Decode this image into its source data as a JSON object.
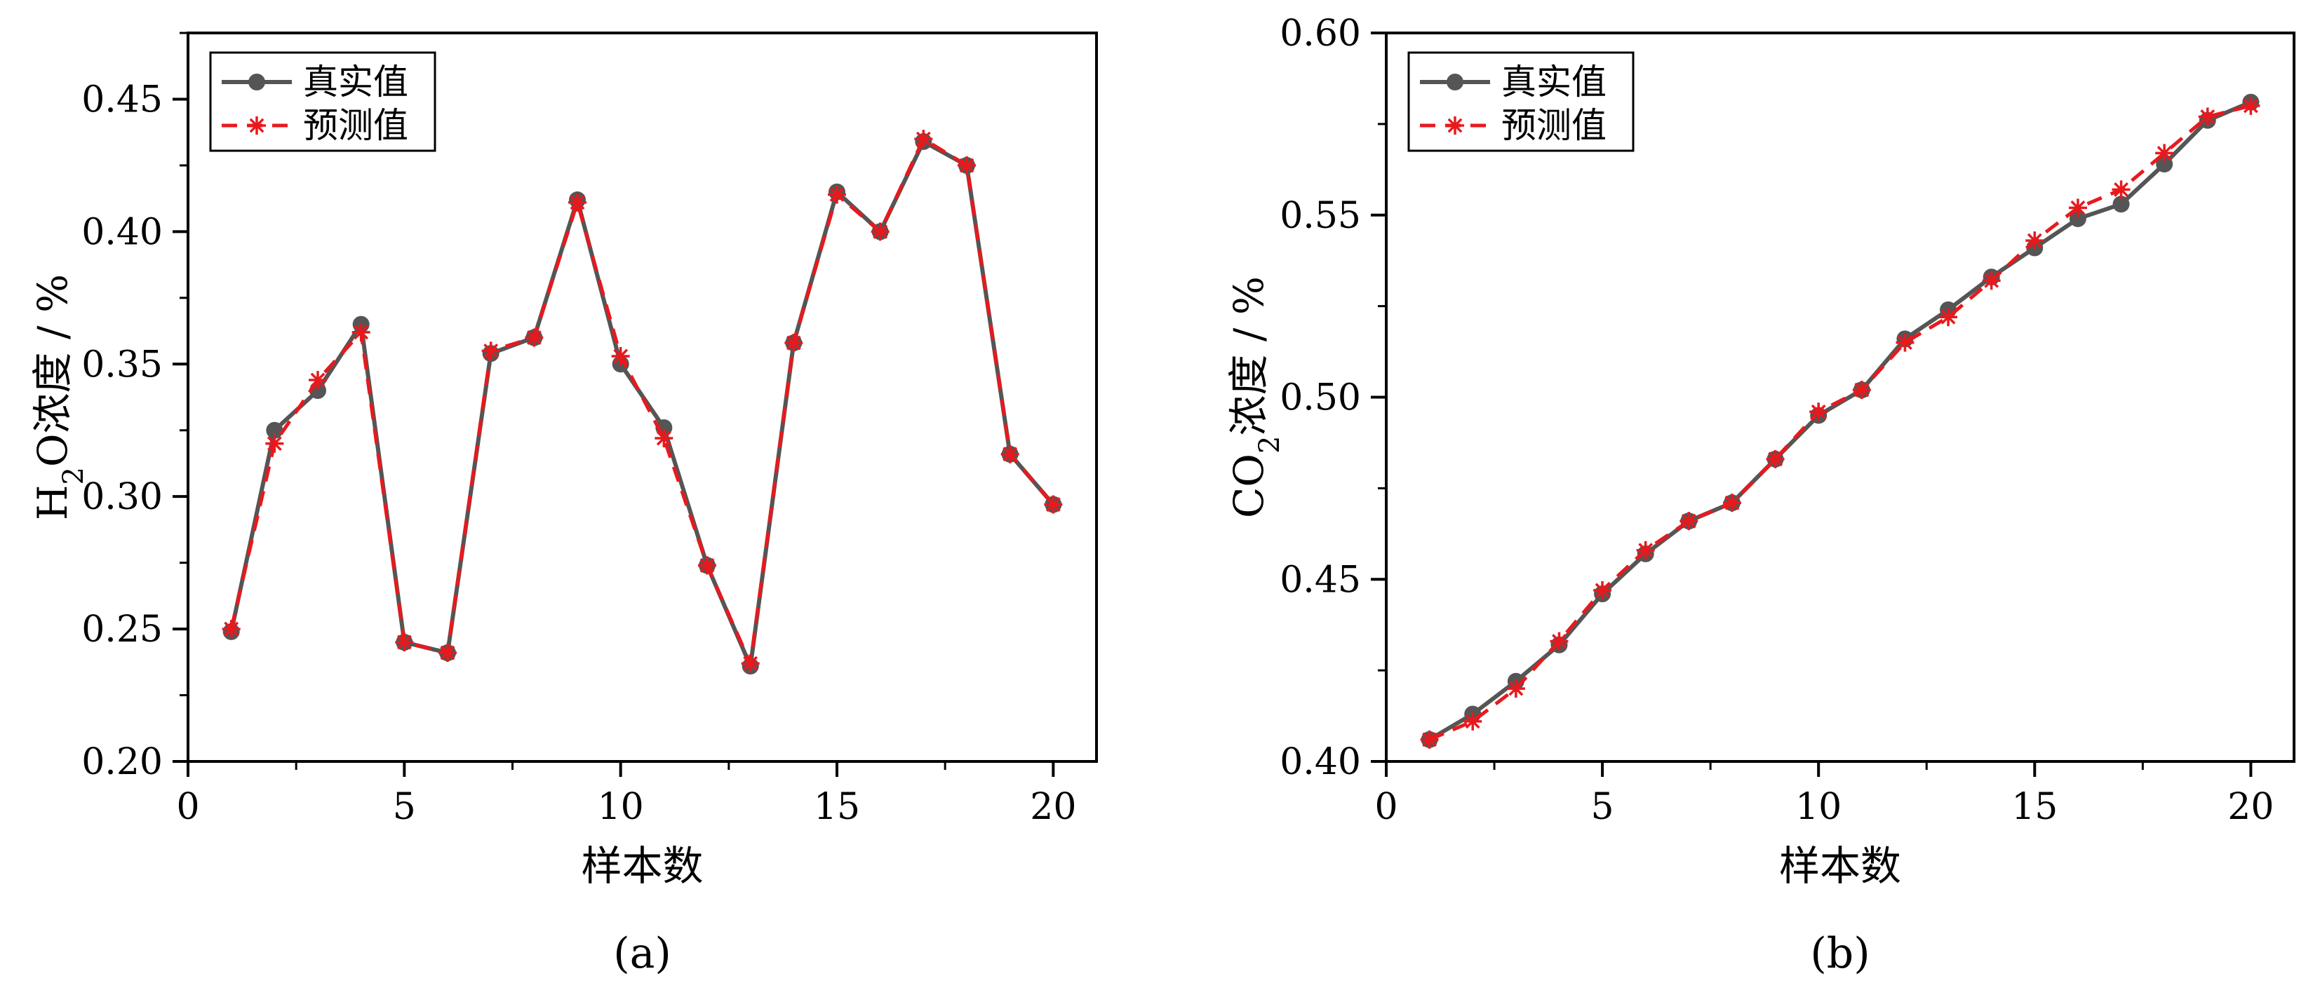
{
  "chart_data": [
    {
      "type": "line",
      "caption": "(a)",
      "xlabel": "样本数",
      "ylabel_main": "H",
      "ylabel_sub": "2",
      "ylabel_rest": "O浓度 / %",
      "xlim": [
        0,
        21
      ],
      "ylim": [
        0.2,
        0.475
      ],
      "xticks": [
        0,
        5,
        10,
        15,
        20
      ],
      "yticks": [
        0.2,
        0.25,
        0.3,
        0.35,
        0.4,
        0.45
      ],
      "xtick_labels": [
        "0",
        "5",
        "10",
        "15",
        "20"
      ],
      "ytick_labels": [
        "0.20",
        "0.25",
        "0.30",
        "0.35",
        "0.40",
        "0.45"
      ],
      "legend_position": "top-left",
      "x": [
        1,
        2,
        3,
        4,
        5,
        6,
        7,
        8,
        9,
        10,
        11,
        12,
        13,
        14,
        15,
        16,
        17,
        18,
        19,
        20
      ],
      "series": [
        {
          "name": "真实值",
          "color": "#555555",
          "style": "solid",
          "marker": "circle",
          "values": [
            0.249,
            0.325,
            0.34,
            0.365,
            0.245,
            0.241,
            0.354,
            0.36,
            0.412,
            0.35,
            0.326,
            0.274,
            0.236,
            0.358,
            0.415,
            0.4,
            0.434,
            0.425,
            0.316,
            0.297
          ]
        },
        {
          "name": "预测值",
          "color": "#e8191d",
          "style": "dashed",
          "marker": "star",
          "values": [
            0.25,
            0.32,
            0.344,
            0.362,
            0.245,
            0.241,
            0.355,
            0.36,
            0.411,
            0.353,
            0.322,
            0.274,
            0.237,
            0.358,
            0.414,
            0.4,
            0.435,
            0.425,
            0.316,
            0.297
          ]
        }
      ]
    },
    {
      "type": "line",
      "caption": "(b)",
      "xlabel": "样本数",
      "ylabel_main": "CO",
      "ylabel_sub": "2",
      "ylabel_rest": "浓度 / %",
      "xlim": [
        0,
        21
      ],
      "ylim": [
        0.4,
        0.6
      ],
      "xticks": [
        0,
        5,
        10,
        15,
        20
      ],
      "yticks": [
        0.4,
        0.45,
        0.5,
        0.55,
        0.6
      ],
      "xtick_labels": [
        "0",
        "5",
        "10",
        "15",
        "20"
      ],
      "ytick_labels": [
        "0.40",
        "0.45",
        "0.50",
        "0.55",
        "0.60"
      ],
      "legend_position": "top-left",
      "x": [
        1,
        2,
        3,
        4,
        5,
        6,
        7,
        8,
        9,
        10,
        11,
        12,
        13,
        14,
        15,
        16,
        17,
        18,
        19,
        20
      ],
      "series": [
        {
          "name": "真实值",
          "color": "#555555",
          "style": "solid",
          "marker": "circle",
          "values": [
            0.406,
            0.413,
            0.422,
            0.432,
            0.446,
            0.457,
            0.466,
            0.471,
            0.483,
            0.495,
            0.502,
            0.516,
            0.524,
            0.533,
            0.541,
            0.549,
            0.553,
            0.564,
            0.576,
            0.581
          ]
        },
        {
          "name": "预测值",
          "color": "#e8191d",
          "style": "dashed",
          "marker": "star",
          "values": [
            0.406,
            0.411,
            0.42,
            0.433,
            0.447,
            0.458,
            0.466,
            0.471,
            0.483,
            0.496,
            0.502,
            0.515,
            0.522,
            0.532,
            0.543,
            0.552,
            0.557,
            0.567,
            0.577,
            0.58
          ]
        }
      ]
    }
  ]
}
